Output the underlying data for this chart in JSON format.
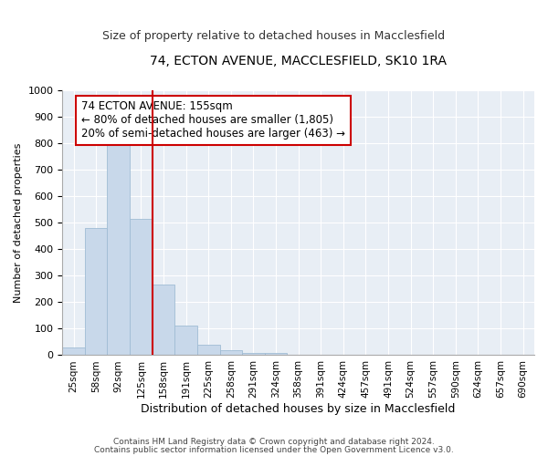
{
  "title": "74, ECTON AVENUE, MACCLESFIELD, SK10 1RA",
  "subtitle": "Size of property relative to detached houses in Macclesfield",
  "xlabel": "Distribution of detached houses by size in Macclesfield",
  "ylabel": "Number of detached properties",
  "bar_color": "#c8d8ea",
  "bar_edge_color": "#a0bcd4",
  "fig_background_color": "#ffffff",
  "plot_background_color": "#e8eef5",
  "grid_color": "#ffffff",
  "categories": [
    "25sqm",
    "58sqm",
    "92sqm",
    "125sqm",
    "158sqm",
    "191sqm",
    "225sqm",
    "258sqm",
    "291sqm",
    "324sqm",
    "358sqm",
    "391sqm",
    "424sqm",
    "457sqm",
    "491sqm",
    "524sqm",
    "557sqm",
    "590sqm",
    "624sqm",
    "657sqm",
    "690sqm"
  ],
  "values": [
    30,
    480,
    820,
    515,
    265,
    110,
    38,
    18,
    10,
    10,
    0,
    0,
    0,
    0,
    0,
    0,
    0,
    0,
    0,
    0,
    0
  ],
  "vline_color": "#cc0000",
  "vline_index": 4,
  "annotation_text": "74 ECTON AVENUE: 155sqm\n← 80% of detached houses are smaller (1,805)\n20% of semi-detached houses are larger (463) →",
  "annotation_box_color": "#ffffff",
  "annotation_box_edge_color": "#cc0000",
  "ylim": [
    0,
    1000
  ],
  "yticks": [
    0,
    100,
    200,
    300,
    400,
    500,
    600,
    700,
    800,
    900,
    1000
  ],
  "footnote1": "Contains HM Land Registry data © Crown copyright and database right 2024.",
  "footnote2": "Contains public sector information licensed under the Open Government Licence v3.0."
}
